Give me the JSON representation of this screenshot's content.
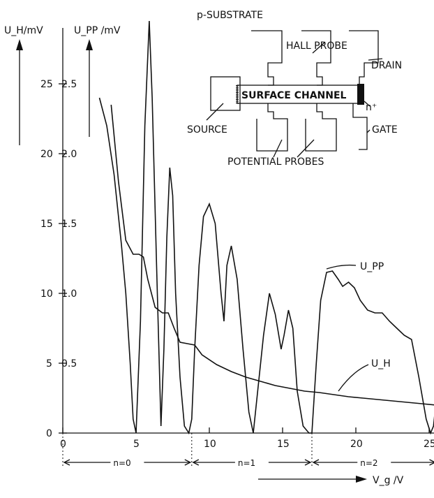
{
  "chart_data": {
    "type": "line",
    "xlabel": "V_g /V",
    "ylabel_left": "U_H/mV",
    "ylabel_right": "U_PP /mV",
    "x_ticks": [
      "0",
      "5",
      "10",
      "15",
      "20",
      "25"
    ],
    "y_ticks_left": [
      "0",
      "5",
      "10",
      "15",
      "20",
      "25"
    ],
    "y_ticks_right": [
      "0.5",
      "1.0",
      "1.5",
      "2.0",
      "2.5"
    ],
    "xlim": [
      0,
      25.5
    ],
    "ylim_left": [
      0,
      29
    ],
    "ylim_right": [
      0,
      2.9
    ],
    "landau_levels": [
      {
        "label": "n=0",
        "x_start": 0,
        "x_end": 8.8
      },
      {
        "label": "n=1",
        "x_start": 8.8,
        "x_end": 17
      },
      {
        "label": "n=2",
        "x_start": 17,
        "x_end": 25.5
      }
    ],
    "series": [
      {
        "name": "U_PP",
        "axis": "right",
        "x": [
          2.5,
          3.0,
          3.5,
          4.0,
          4.3,
          4.6,
          4.8,
          5.0,
          5.3,
          5.6,
          5.9,
          6.1,
          6.4,
          6.7,
          6.9,
          7.1,
          7.3,
          7.5,
          7.7,
          8.0,
          8.3,
          8.6,
          8.8,
          9.0,
          9.3,
          9.6,
          10.0,
          10.4,
          10.8,
          11.0,
          11.2,
          11.5,
          11.9,
          12.3,
          12.7,
          13.0,
          13.3,
          13.7,
          14.1,
          14.5,
          14.9,
          15.1,
          15.4,
          15.7,
          16.0,
          16.4,
          16.8,
          17.0,
          17.3,
          17.6,
          18.0,
          18.4,
          18.8,
          19.1,
          19.5,
          19.9,
          20.3,
          20.8,
          21.3,
          21.8,
          22.3,
          22.8,
          23.3,
          23.8,
          24.3,
          24.8,
          25.1,
          25.3,
          25.5
        ],
        "y": [
          2.4,
          2.2,
          1.85,
          1.35,
          1.0,
          0.5,
          0.1,
          0.0,
          0.8,
          2.2,
          2.95,
          2.4,
          1.2,
          0.05,
          0.6,
          1.4,
          1.9,
          1.7,
          1.0,
          0.4,
          0.05,
          0.0,
          0.1,
          0.6,
          1.2,
          1.55,
          1.64,
          1.5,
          1.0,
          0.8,
          1.2,
          1.34,
          1.1,
          0.6,
          0.15,
          0.0,
          0.3,
          0.7,
          1.0,
          0.85,
          0.6,
          0.7,
          0.88,
          0.75,
          0.3,
          0.05,
          0.0,
          0.0,
          0.5,
          0.95,
          1.15,
          1.16,
          1.1,
          1.05,
          1.08,
          1.04,
          0.95,
          0.88,
          0.86,
          0.86,
          0.8,
          0.75,
          0.7,
          0.67,
          0.4,
          0.1,
          0.0,
          0.05,
          0.25
        ]
      },
      {
        "name": "U_H",
        "axis": "left",
        "x": [
          3.3,
          3.8,
          4.3,
          4.8,
          5.2,
          5.5,
          5.8,
          6.3,
          6.8,
          7.2,
          7.6,
          8.0,
          8.5,
          9.0,
          9.5,
          10.5,
          11.5,
          12.5,
          13.5,
          14.5,
          15.5,
          16.5,
          17.5,
          18.5,
          19.5,
          20.5,
          21.5,
          22.5,
          23.5,
          24.5,
          25.5
        ],
        "y": [
          23.5,
          18.0,
          13.8,
          12.8,
          12.8,
          12.6,
          11.0,
          9.0,
          8.6,
          8.6,
          7.5,
          6.5,
          6.4,
          6.3,
          5.6,
          4.9,
          4.4,
          4.0,
          3.7,
          3.4,
          3.2,
          3.0,
          2.9,
          2.75,
          2.6,
          2.5,
          2.4,
          2.3,
          2.2,
          2.1,
          2.0
        ]
      }
    ],
    "annotations": [
      "U_PP",
      "U_H"
    ]
  },
  "inset": {
    "title": "p-SUBSTRATE",
    "hall_probe": "HALL PROBE",
    "drain": "DRAIN",
    "surface_channel": "SURFACE CHANNEL",
    "n_plus": "n⁺",
    "source": "SOURCE",
    "gate": "GATE",
    "potential_probes": "POTENTIAL PROBES"
  }
}
